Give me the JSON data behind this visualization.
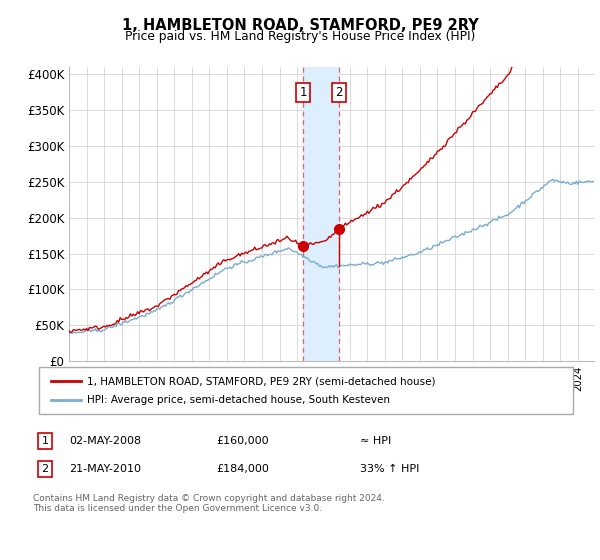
{
  "title": "1, HAMBLETON ROAD, STAMFORD, PE9 2RY",
  "subtitle": "Price paid vs. HM Land Registry's House Price Index (HPI)",
  "ylabel_ticks": [
    "£0",
    "£50K",
    "£100K",
    "£150K",
    "£200K",
    "£250K",
    "£300K",
    "£350K",
    "£400K"
  ],
  "ytick_values": [
    0,
    50000,
    100000,
    150000,
    200000,
    250000,
    300000,
    350000,
    400000
  ],
  "ylim": [
    0,
    410000
  ],
  "xlim_start": 1995.0,
  "xlim_end": 2024.92,
  "sale1_x": 2008.34,
  "sale1_y": 160000,
  "sale2_x": 2010.38,
  "sale2_y": 184000,
  "sale_color": "#cc0000",
  "hpi_color": "#7aadcf",
  "shade_color": "#ddeeff",
  "vline_color": "#dd6666",
  "legend_label1": "1, HAMBLETON ROAD, STAMFORD, PE9 2RY (semi-detached house)",
  "legend_label2": "HPI: Average price, semi-detached house, South Kesteven",
  "table_row1": [
    "1",
    "02-MAY-2008",
    "£160,000",
    "≈ HPI"
  ],
  "table_row2": [
    "2",
    "21-MAY-2010",
    "£184,000",
    "33% ↑ HPI"
  ],
  "footer": "Contains HM Land Registry data © Crown copyright and database right 2024.\nThis data is licensed under the Open Government Licence v3.0.",
  "background_color": "#ffffff",
  "grid_color": "#cccccc"
}
